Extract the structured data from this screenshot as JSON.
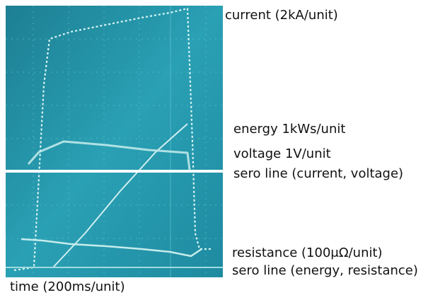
{
  "labels": {
    "current": "current (2kA/unit)",
    "energy": "energy 1kWs/unit",
    "voltage": "voltage 1V/unit",
    "zero_current_voltage": "sero line (current, voltage)",
    "resistance": "resistance (100μΩ/unit)",
    "zero_energy_resistance": "sero line (energy, resistance)",
    "time": "time (200ms/unit)"
  }
}
